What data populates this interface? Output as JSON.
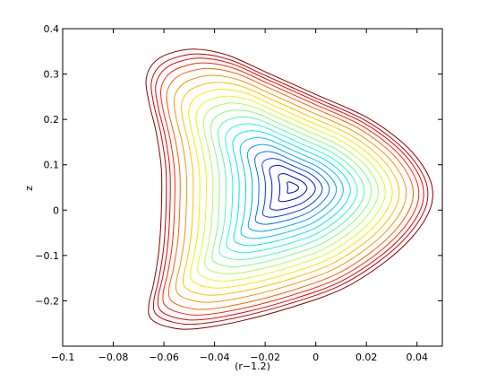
{
  "chart_data": {
    "type": "contour",
    "title": "",
    "xlabel": "(r−1.2)",
    "ylabel": "z",
    "xlim": [
      -0.1,
      0.05
    ],
    "ylim": [
      -0.3,
      0.4
    ],
    "xticks": [
      -0.1,
      -0.08,
      -0.06,
      -0.04,
      -0.02,
      0,
      0.02,
      0.04
    ],
    "yticks": [
      -0.2,
      -0.1,
      0,
      0.1,
      0.2,
      0.3,
      0.4
    ],
    "xtick_labels": [
      "−0.1",
      "−0.08",
      "−0.06",
      "−0.04",
      "−0.02",
      "0",
      "0.02",
      "0.04"
    ],
    "ytick_labels": [
      "−0.2",
      "−0.1",
      "0",
      "0.1",
      "0.2",
      "0.3",
      "0.4"
    ],
    "grid": false,
    "colormap": "jet",
    "axis_center": {
      "x": -0.009,
      "z": 0.05
    },
    "outer_contour": [
      [
        -0.048,
        0.355
      ],
      [
        -0.058,
        0.345
      ],
      [
        -0.064,
        0.325
      ],
      [
        -0.067,
        0.29
      ],
      [
        -0.066,
        0.24
      ],
      [
        -0.063,
        0.17
      ],
      [
        -0.061,
        0.09
      ],
      [
        -0.061,
        0.0
      ],
      [
        -0.062,
        -0.09
      ],
      [
        -0.064,
        -0.16
      ],
      [
        -0.066,
        -0.21
      ],
      [
        -0.065,
        -0.24
      ],
      [
        -0.058,
        -0.258
      ],
      [
        -0.048,
        -0.262
      ],
      [
        -0.03,
        -0.245
      ],
      [
        -0.01,
        -0.215
      ],
      [
        0.01,
        -0.175
      ],
      [
        0.026,
        -0.12
      ],
      [
        0.038,
        -0.06
      ],
      [
        0.045,
        0.0
      ],
      [
        0.046,
        0.05
      ],
      [
        0.042,
        0.1
      ],
      [
        0.034,
        0.15
      ],
      [
        0.02,
        0.205
      ],
      [
        0.0,
        0.255
      ],
      [
        -0.02,
        0.305
      ],
      [
        -0.035,
        0.342
      ]
    ],
    "levels": [
      {
        "level": 0.04,
        "color": "#0000c0"
      },
      {
        "level": 0.1,
        "color": "#0000e0"
      },
      {
        "level": 0.16,
        "color": "#0010ff"
      },
      {
        "level": 0.21,
        "color": "#0040ff"
      },
      {
        "level": 0.26,
        "color": "#0070ff"
      },
      {
        "level": 0.31,
        "color": "#00a0ff"
      },
      {
        "level": 0.36,
        "color": "#00c8ff"
      },
      {
        "level": 0.41,
        "color": "#00e8f0"
      },
      {
        "level": 0.46,
        "color": "#20ffd0"
      },
      {
        "level": 0.51,
        "color": "#50ffa8"
      },
      {
        "level": 0.56,
        "color": "#80ff80"
      },
      {
        "level": 0.61,
        "color": "#b0ff50"
      },
      {
        "level": 0.66,
        "color": "#d8ff20"
      },
      {
        "level": 0.71,
        "color": "#ffe800"
      },
      {
        "level": 0.76,
        "color": "#ffc000"
      },
      {
        "level": 0.81,
        "color": "#ff9000"
      },
      {
        "level": 0.86,
        "color": "#ff6000"
      },
      {
        "level": 0.9,
        "color": "#ff2800"
      },
      {
        "level": 0.935,
        "color": "#f00000"
      },
      {
        "level": 0.965,
        "color": "#c80000"
      },
      {
        "level": 1.0,
        "color": "#8b0000"
      }
    ]
  }
}
